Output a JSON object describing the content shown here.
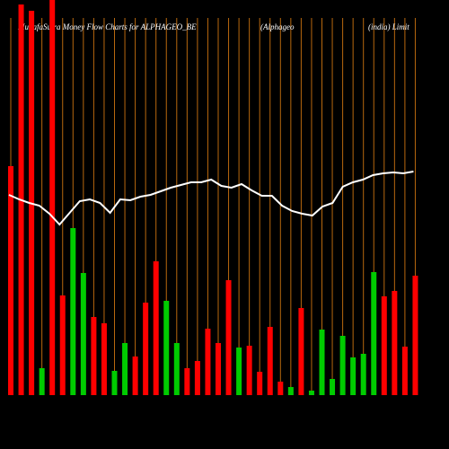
{
  "chart_data": {
    "type": "bar",
    "title": "MunafaSutra  Money Flow  Charts for ALPHAGEO_BE",
    "subtitle": [
      "(Alphageo",
      "(india) Limit"
    ],
    "ylim": [
      0,
      440
    ],
    "values": [
      255,
      435,
      428,
      30,
      460,
      111,
      186,
      136,
      87,
      80,
      27,
      58,
      43,
      103,
      149,
      105,
      58,
      30,
      38,
      74,
      58,
      128,
      53,
      55,
      26,
      76,
      15,
      9,
      97,
      5,
      73,
      18,
      66,
      42,
      46,
      137,
      110,
      116,
      54,
      133
    ],
    "colors": [
      "#ff0000",
      "#ff0000",
      "#ff0000",
      "#00cc00",
      "#ff0000",
      "#ff0000",
      "#00cc00",
      "#00cc00",
      "#ff0000",
      "#ff0000",
      "#00cc00",
      "#00cc00",
      "#ff0000",
      "#ff0000",
      "#ff0000",
      "#00cc00",
      "#00cc00",
      "#ff0000",
      "#ff0000",
      "#ff0000",
      "#ff0000",
      "#ff0000",
      "#00cc00",
      "#ff0000",
      "#ff0000",
      "#ff0000",
      "#ff0000",
      "#00cc00",
      "#ff0000",
      "#00cc00",
      "#00cc00",
      "#00cc00",
      "#00cc00",
      "#00cc00",
      "#00cc00",
      "#00cc00",
      "#ff0000",
      "#ff0000",
      "#ff0000",
      "#ff0000"
    ],
    "line": {
      "color": "#ffffff",
      "values": [
        223,
        218,
        214,
        211,
        202,
        190,
        203,
        216,
        218,
        214,
        203,
        218,
        217,
        221,
        223,
        227,
        231,
        234,
        237,
        237,
        240,
        233,
        231,
        235,
        228,
        222,
        222,
        211,
        205,
        202,
        200,
        210,
        214,
        232,
        237,
        240,
        245,
        247,
        248,
        247,
        249
      ]
    },
    "grid_color": "#b8680e"
  }
}
